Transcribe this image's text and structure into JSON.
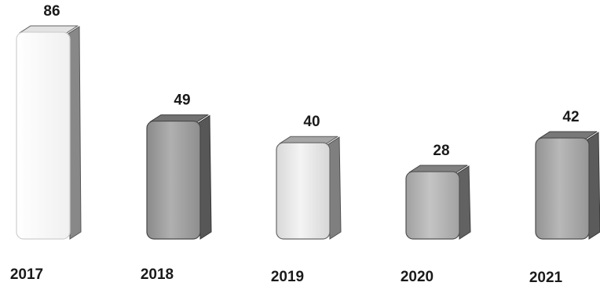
{
  "chart_data": {
    "type": "bar",
    "categories": [
      "2017",
      "2018",
      "2019",
      "2020",
      "2021"
    ],
    "values": [
      86,
      49,
      40,
      28,
      42
    ],
    "data_labels": [
      "86",
      "49",
      "40",
      "28",
      "42"
    ],
    "title": "",
    "xlabel": "",
    "ylabel": "",
    "ylim": [
      0,
      90
    ],
    "grid": false,
    "legend": "none",
    "bar_style": "3d-rounded",
    "colors": {
      "2017": "#f7f7f7",
      "2018": "#9e9e9e",
      "2019": "#e6e6e6",
      "2020": "#b3b3b3",
      "2021": "#a6a6a6"
    }
  }
}
